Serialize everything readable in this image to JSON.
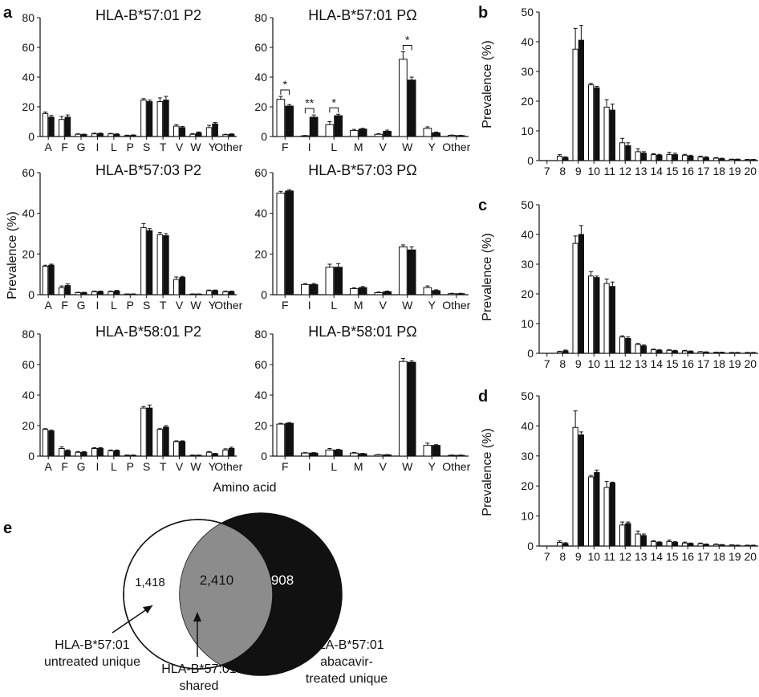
{
  "labels": {
    "panel_a": "a",
    "panel_b": "b",
    "panel_c": "c",
    "panel_d": "d",
    "panel_e": "e",
    "ylabel_prevalence": "Prevalence (%)",
    "xlabel_amino_acid": "Amino acid"
  },
  "chart_data": [
    {
      "id": "a1",
      "type": "bar",
      "title": "HLA-B*57:01 P2",
      "ylim": [
        0,
        80
      ],
      "yticks": [
        0,
        20,
        40,
        60,
        80
      ],
      "categories": [
        "A",
        "F",
        "G",
        "I",
        "L",
        "P",
        "S",
        "T",
        "V",
        "W",
        "Y",
        "Other"
      ],
      "series": [
        {
          "values": [
            15.5,
            11.5,
            1.5,
            1.8,
            1.8,
            0.6,
            24.5,
            23.5,
            7.0,
            1.5,
            6.0,
            1.2
          ],
          "errors": [
            1.0,
            2.0,
            0.3,
            0.4,
            0.3,
            0.3,
            1.0,
            2.5,
            1.0,
            0.5,
            1.5,
            0.3
          ]
        },
        {
          "values": [
            13.0,
            13.0,
            1.3,
            1.9,
            1.5,
            0.8,
            23.5,
            24.5,
            6.0,
            2.5,
            8.5,
            1.5
          ],
          "errors": [
            1.2,
            1.5,
            0.3,
            0.4,
            0.3,
            0.3,
            1.0,
            2.5,
            0.8,
            0.6,
            1.0,
            0.3
          ]
        }
      ]
    },
    {
      "id": "a2",
      "type": "bar",
      "title": "HLA-B*57:01 PΩ",
      "ylim": [
        0,
        80
      ],
      "yticks": [
        0,
        20,
        40,
        60,
        80
      ],
      "categories": [
        "F",
        "I",
        "L",
        "M",
        "V",
        "W",
        "Y",
        "Other"
      ],
      "series": [
        {
          "values": [
            25.0,
            0.5,
            8.0,
            4.0,
            1.5,
            52.0,
            5.5,
            0.8
          ],
          "errors": [
            2.0,
            0.2,
            2.0,
            0.8,
            0.5,
            5.0,
            1.0,
            0.2
          ]
        },
        {
          "values": [
            20.5,
            13.0,
            14.0,
            5.0,
            3.5,
            38.0,
            2.5,
            0.6
          ],
          "errors": [
            1.0,
            1.5,
            1.0,
            0.5,
            0.8,
            2.0,
            0.5,
            0.2
          ]
        }
      ],
      "annotations": [
        {
          "category": "F",
          "label": "*"
        },
        {
          "category": "I",
          "label": "**"
        },
        {
          "category": "L",
          "label": "*"
        },
        {
          "category": "W",
          "label": "*"
        }
      ]
    },
    {
      "id": "a3",
      "type": "bar",
      "title": "HLA-B*57:03 P2",
      "ylim": [
        0,
        60
      ],
      "yticks": [
        0,
        20,
        40,
        60
      ],
      "categories": [
        "A",
        "F",
        "G",
        "I",
        "L",
        "P",
        "S",
        "T",
        "V",
        "W",
        "Y",
        "Other"
      ],
      "series": [
        {
          "values": [
            14.0,
            3.5,
            1.0,
            1.5,
            1.5,
            0.3,
            33.0,
            29.5,
            7.5,
            0.3,
            2.0,
            1.5
          ],
          "errors": [
            0.5,
            0.8,
            0.2,
            0.3,
            0.3,
            0.1,
            2.0,
            1.0,
            1.2,
            0.1,
            0.3,
            0.3
          ]
        },
        {
          "values": [
            14.5,
            4.5,
            1.0,
            1.5,
            1.8,
            0.3,
            31.5,
            29.0,
            8.5,
            0.3,
            2.0,
            1.5
          ],
          "errors": [
            0.5,
            0.8,
            0.2,
            0.3,
            0.3,
            0.1,
            1.0,
            1.0,
            0.5,
            0.1,
            0.3,
            0.3
          ]
        }
      ]
    },
    {
      "id": "a4",
      "type": "bar",
      "title": "HLA-B*57:03 PΩ",
      "ylim": [
        0,
        60
      ],
      "yticks": [
        0,
        20,
        40,
        60
      ],
      "categories": [
        "F",
        "I",
        "L",
        "M",
        "V",
        "W",
        "Y",
        "Other"
      ],
      "series": [
        {
          "values": [
            50.0,
            5.0,
            13.5,
            3.0,
            1.0,
            23.5,
            3.5,
            0.5
          ],
          "errors": [
            0.8,
            0.5,
            1.5,
            0.4,
            0.3,
            1.0,
            0.8,
            0.2
          ]
        },
        {
          "values": [
            51.0,
            5.0,
            13.5,
            3.5,
            1.5,
            22.0,
            2.0,
            0.5
          ],
          "errors": [
            0.6,
            0.5,
            1.8,
            0.5,
            0.3,
            1.5,
            0.4,
            0.2
          ]
        }
      ]
    },
    {
      "id": "a5",
      "type": "bar",
      "title": "HLA-B*58:01 P2",
      "ylim": [
        0,
        80
      ],
      "yticks": [
        0,
        20,
        40,
        60,
        80
      ],
      "categories": [
        "A",
        "F",
        "G",
        "I",
        "L",
        "P",
        "S",
        "T",
        "V",
        "W",
        "Y",
        "Other"
      ],
      "series": [
        {
          "values": [
            17.5,
            5.0,
            2.5,
            5.0,
            3.5,
            0.5,
            31.5,
            17.5,
            9.5,
            0.5,
            2.5,
            4.0
          ],
          "errors": [
            0.5,
            1.0,
            0.5,
            0.5,
            0.5,
            0.2,
            1.0,
            0.5,
            0.5,
            0.2,
            0.5,
            0.8
          ]
        },
        {
          "values": [
            16.5,
            3.5,
            2.5,
            5.0,
            3.5,
            0.5,
            31.5,
            19.0,
            9.5,
            0.5,
            1.5,
            5.0
          ],
          "errors": [
            0.5,
            0.6,
            0.5,
            0.5,
            0.5,
            0.2,
            2.0,
            1.0,
            0.5,
            0.2,
            0.3,
            0.8
          ]
        }
      ]
    },
    {
      "id": "a6",
      "type": "bar",
      "title": "HLA-B*58:01 PΩ",
      "ylim": [
        0,
        80
      ],
      "yticks": [
        0,
        20,
        40,
        60,
        80
      ],
      "categories": [
        "F",
        "I",
        "L",
        "M",
        "V",
        "W",
        "Y",
        "Other"
      ],
      "series": [
        {
          "values": [
            21.0,
            2.0,
            4.0,
            2.0,
            0.8,
            62.0,
            7.0,
            0.5
          ],
          "errors": [
            0.5,
            0.3,
            1.0,
            0.4,
            0.2,
            2.0,
            1.5,
            0.2
          ]
        },
        {
          "values": [
            21.5,
            2.0,
            4.0,
            1.5,
            0.8,
            61.5,
            7.0,
            0.5
          ],
          "errors": [
            0.5,
            0.3,
            0.5,
            0.3,
            0.2,
            1.0,
            0.5,
            0.2
          ]
        }
      ]
    },
    {
      "id": "b",
      "type": "bar",
      "ylim": [
        0,
        50
      ],
      "yticks": [
        0,
        10,
        20,
        30,
        40,
        50
      ],
      "categories": [
        "7",
        "8",
        "9",
        "10",
        "11",
        "12",
        "13",
        "14",
        "15",
        "16",
        "17",
        "18",
        "19",
        "20"
      ],
      "series": [
        {
          "values": [
            0,
            1.5,
            37.5,
            25.5,
            18.0,
            6.0,
            3.0,
            2.0,
            2.0,
            1.8,
            1.2,
            0.8,
            0.4,
            0.3
          ],
          "errors": [
            0,
            0.5,
            7.0,
            0.5,
            2.5,
            1.5,
            1.0,
            0.3,
            0.8,
            0.3,
            0.3,
            0.2,
            0.1,
            0.1
          ]
        },
        {
          "values": [
            0,
            1.0,
            40.5,
            24.5,
            17.0,
            5.0,
            2.5,
            1.8,
            2.0,
            1.5,
            1.0,
            0.6,
            0.4,
            0.3
          ],
          "errors": [
            0,
            0.3,
            5.0,
            0.5,
            2.0,
            1.0,
            0.5,
            0.3,
            0.5,
            0.3,
            0.3,
            0.2,
            0.1,
            0.1
          ]
        }
      ]
    },
    {
      "id": "c",
      "type": "bar",
      "ylim": [
        0,
        50
      ],
      "yticks": [
        0,
        10,
        20,
        30,
        40,
        50
      ],
      "categories": [
        "7",
        "8",
        "9",
        "10",
        "11",
        "12",
        "13",
        "14",
        "15",
        "16",
        "17",
        "18",
        "19",
        "20"
      ],
      "series": [
        {
          "values": [
            0,
            0.5,
            37.0,
            26.0,
            23.5,
            5.5,
            3.0,
            1.2,
            1.0,
            0.8,
            0.5,
            0.3,
            0.2,
            0.2
          ],
          "errors": [
            0,
            0.2,
            2.5,
            1.5,
            1.5,
            0.4,
            0.3,
            0.2,
            0.2,
            0.2,
            0.1,
            0.1,
            0.1,
            0.1
          ]
        },
        {
          "values": [
            0,
            0.8,
            40.0,
            25.5,
            22.5,
            5.0,
            2.5,
            1.0,
            0.8,
            0.6,
            0.4,
            0.3,
            0.2,
            0.2
          ],
          "errors": [
            0,
            0.3,
            3.0,
            0.5,
            1.5,
            0.5,
            0.3,
            0.2,
            0.2,
            0.2,
            0.1,
            0.1,
            0.1,
            0.1
          ]
        }
      ]
    },
    {
      "id": "d",
      "type": "bar",
      "ylim": [
        0,
        50
      ],
      "yticks": [
        0,
        10,
        20,
        30,
        40,
        50
      ],
      "categories": [
        "7",
        "8",
        "9",
        "10",
        "11",
        "12",
        "13",
        "14",
        "15",
        "16",
        "17",
        "18",
        "19",
        "20"
      ],
      "series": [
        {
          "values": [
            0,
            1.2,
            39.5,
            23.0,
            19.5,
            7.0,
            4.0,
            1.5,
            1.5,
            1.0,
            0.8,
            0.5,
            0.3,
            0.2
          ],
          "errors": [
            0,
            0.5,
            5.5,
            0.5,
            2.0,
            1.0,
            1.0,
            0.3,
            0.5,
            0.3,
            0.2,
            0.2,
            0.1,
            0.1
          ]
        },
        {
          "values": [
            0,
            0.8,
            37.0,
            24.5,
            21.0,
            7.5,
            3.5,
            1.2,
            1.2,
            0.8,
            0.5,
            0.4,
            0.2,
            0.2
          ],
          "errors": [
            0,
            0.3,
            1.0,
            0.8,
            0.3,
            0.5,
            0.5,
            0.2,
            0.3,
            0.2,
            0.2,
            0.1,
            0.1,
            0.1
          ]
        }
      ]
    }
  ],
  "venn": {
    "untreated_unique_count": "1,418",
    "shared_count": "2,410",
    "treated_unique_count": "908",
    "untreated_label_line1": "HLA-B*57:01",
    "untreated_label_line2": "untreated unique",
    "shared_label_line1": "HLA-B*57:01",
    "shared_label_line2": "shared",
    "treated_label_line1": "HLA-B*57:01",
    "treated_label_line2": "abacavir-",
    "treated_label_line3": "treated unique",
    "colors": {
      "untreated": "#ffffff",
      "shared": "#8c8c8c",
      "treated": "#111111"
    }
  },
  "colors": {
    "series_open": "#ffffff",
    "series_filled": "#111111",
    "axis": "#111111"
  }
}
